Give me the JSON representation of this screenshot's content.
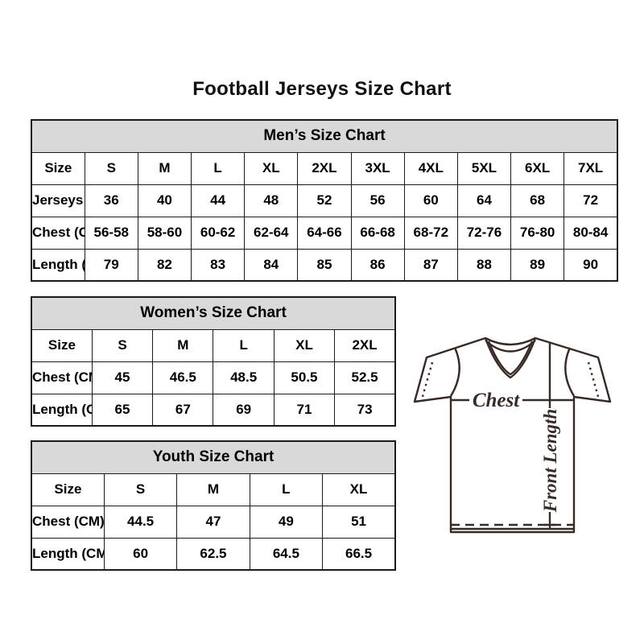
{
  "page": {
    "title": "Football Jerseys Size Chart"
  },
  "tables": {
    "men": {
      "title": "Men’s Size Chart",
      "rows": [
        [
          "Size",
          "S",
          "M",
          "L",
          "XL",
          "2XL",
          "3XL",
          "4XL",
          "5XL",
          "6XL",
          "7XL"
        ],
        [
          "Jerseys Size",
          "36",
          "40",
          "44",
          "48",
          "52",
          "56",
          "60",
          "64",
          "68",
          "72"
        ],
        [
          "Chest (CM)",
          "56-58",
          "58-60",
          "60-62",
          "62-64",
          "64-66",
          "66-68",
          "68-72",
          "72-76",
          "76-80",
          "80-84"
        ],
        [
          "Length (CM)",
          "79",
          "82",
          "83",
          "84",
          "85",
          "86",
          "87",
          "88",
          "89",
          "90"
        ]
      ]
    },
    "women": {
      "title": "Women’s Size Chart",
      "rows": [
        [
          "Size",
          "S",
          "M",
          "L",
          "XL",
          "2XL"
        ],
        [
          "Chest (CM)",
          "45",
          "46.5",
          "48.5",
          "50.5",
          "52.5"
        ],
        [
          "Length (CM)",
          "65",
          "67",
          "69",
          "71",
          "73"
        ]
      ]
    },
    "youth": {
      "title": "Youth Size Chart",
      "rows": [
        [
          "Size",
          "S",
          "M",
          "L",
          "XL"
        ],
        [
          "Chest (CM)",
          "44.5",
          "47",
          "49",
          "51"
        ],
        [
          "Length (CM)",
          "60",
          "62.5",
          "64.5",
          "66.5"
        ]
      ]
    }
  },
  "diagram": {
    "chest_label": "Chest",
    "front_length_label": "Front Length",
    "outline_color": "#372b27"
  },
  "colors": {
    "table_header_bg": "#d9d9d9",
    "table_border": "#1b1b1b",
    "text": "#000000",
    "background": "#ffffff"
  }
}
